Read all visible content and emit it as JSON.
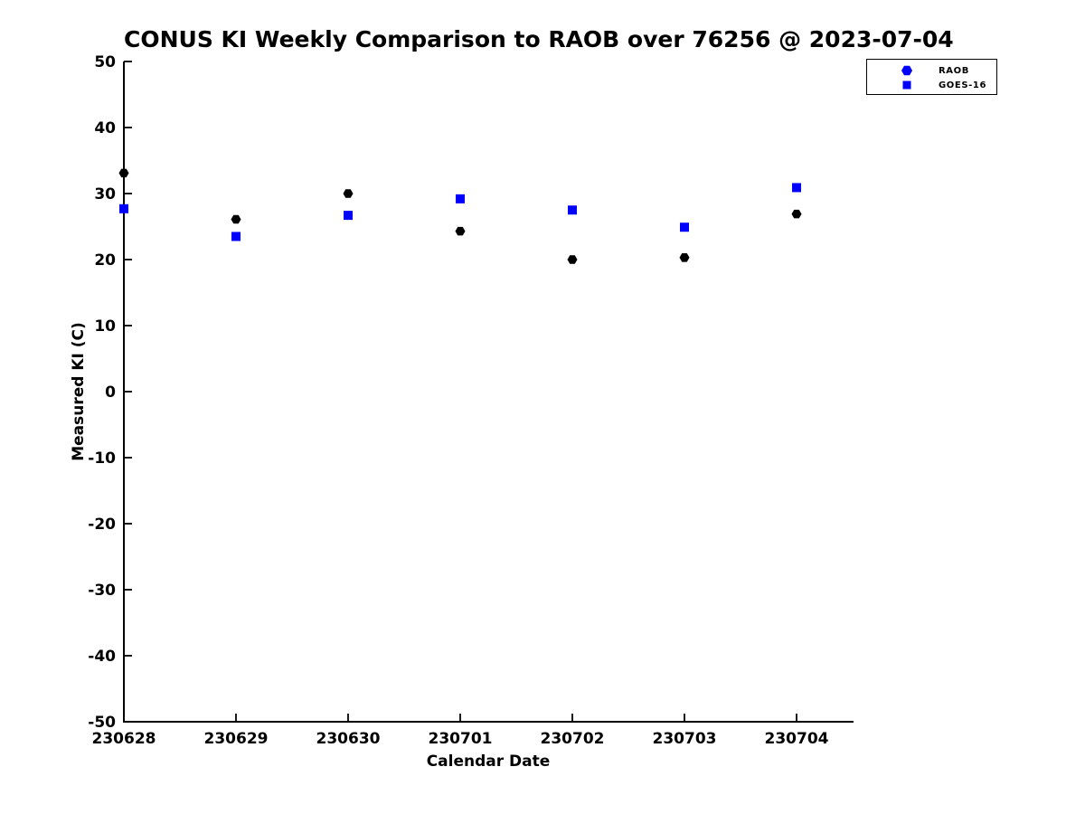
{
  "chart_data": {
    "type": "scatter",
    "title": "CONUS KI Weekly Comparison to RAOB over 76256 @ 2023-07-04",
    "xlabel": "Calendar Date",
    "ylabel": "Measured KI (C)",
    "categories": [
      "230628",
      "230629",
      "230630",
      "230701",
      "230702",
      "230703",
      "230704"
    ],
    "series": [
      {
        "name": "RAOB",
        "marker": "hexagon",
        "color": "#000000",
        "legend_color": "#0000ff",
        "values": [
          33.1,
          26.1,
          30.0,
          24.3,
          20.0,
          20.3,
          26.9
        ]
      },
      {
        "name": "GOES-16",
        "marker": "square",
        "color": "#0000ff",
        "legend_color": "#0000ff",
        "values": [
          27.7,
          23.5,
          26.7,
          29.2,
          27.5,
          24.9,
          30.9
        ]
      }
    ],
    "ylim": [
      -50,
      50
    ],
    "yticks": [
      50,
      40,
      30,
      20,
      10,
      0,
      -10,
      -20,
      -30,
      -40,
      -50
    ],
    "xlim_days": [
      0,
      6.5
    ],
    "grid": false,
    "legend_position": "top-right-outside",
    "axis_color": "#000000",
    "background_color": "#ffffff"
  }
}
